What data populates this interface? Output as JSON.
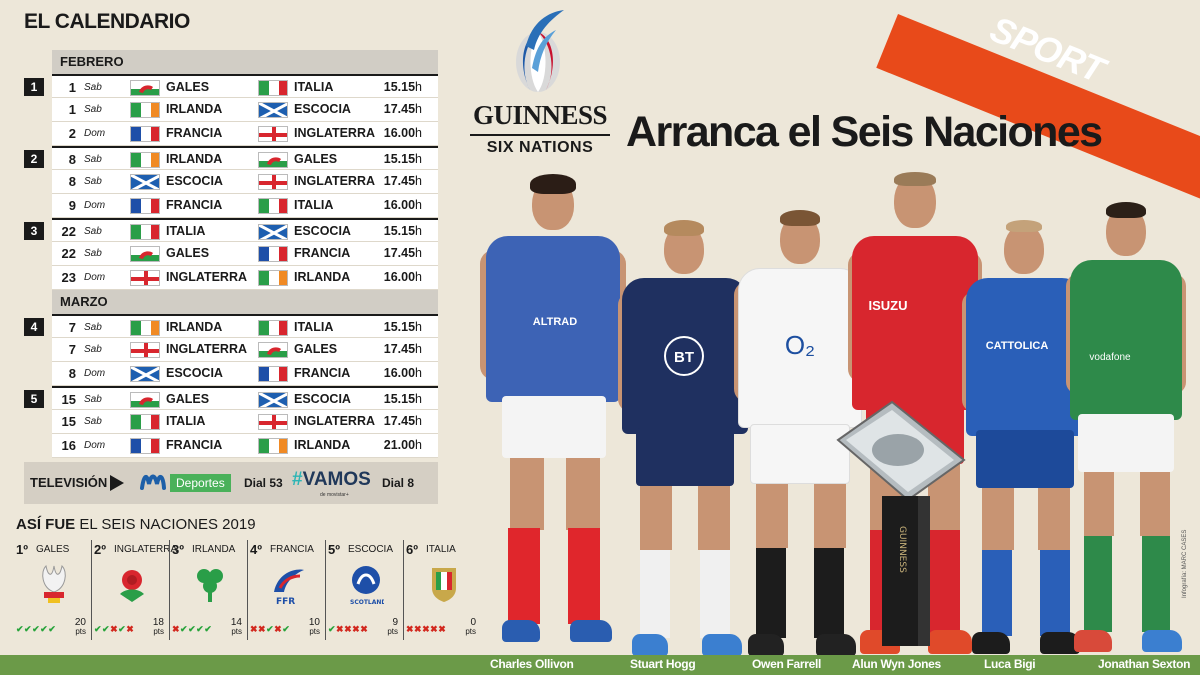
{
  "calendar_title": "EL CALENDARIO",
  "months": {
    "february": "FEBRERO",
    "march": "MARZO"
  },
  "matches": [
    {
      "round": "1",
      "day": "1",
      "dow": "Sab",
      "home": "GALES",
      "away": "ITALIA",
      "time": "15.15",
      "unit": "h"
    },
    {
      "round": "",
      "day": "1",
      "dow": "Sab",
      "home": "IRLANDA",
      "away": "ESCOCIA",
      "time": "17.45",
      "unit": "h"
    },
    {
      "round": "",
      "day": "2",
      "dow": "Dom",
      "home": "FRANCIA",
      "away": "INGLATERRA",
      "time": "16.00",
      "unit": "h"
    },
    {
      "round": "2",
      "day": "8",
      "dow": "Sab",
      "home": "IRLANDA",
      "away": "GALES",
      "time": "15.15",
      "unit": "h"
    },
    {
      "round": "",
      "day": "8",
      "dow": "Sab",
      "home": "ESCOCIA",
      "away": "INGLATERRA",
      "time": "17.45",
      "unit": "h"
    },
    {
      "round": "",
      "day": "9",
      "dow": "Dom",
      "home": "FRANCIA",
      "away": "ITALIA",
      "time": "16.00",
      "unit": "h"
    },
    {
      "round": "3",
      "day": "22",
      "dow": "Sab",
      "home": "ITALIA",
      "away": "ESCOCIA",
      "time": "15.15",
      "unit": "h"
    },
    {
      "round": "",
      "day": "22",
      "dow": "Sab",
      "home": "GALES",
      "away": "FRANCIA",
      "time": "17.45",
      "unit": "h"
    },
    {
      "round": "",
      "day": "23",
      "dow": "Dom",
      "home": "INGLATERRA",
      "away": "IRLANDA",
      "time": "16.00",
      "unit": "h"
    },
    {
      "round": "4",
      "day": "7",
      "dow": "Sab",
      "home": "IRLANDA",
      "away": "ITALIA",
      "time": "15.15",
      "unit": "h"
    },
    {
      "round": "",
      "day": "7",
      "dow": "Sab",
      "home": "INGLATERRA",
      "away": "GALES",
      "time": "17.45",
      "unit": "h"
    },
    {
      "round": "",
      "day": "8",
      "dow": "Dom",
      "home": "ESCOCIA",
      "away": "FRANCIA",
      "time": "16.00",
      "unit": "h"
    },
    {
      "round": "5",
      "day": "15",
      "dow": "Sab",
      "home": "GALES",
      "away": "ESCOCIA",
      "time": "15.15",
      "unit": "h"
    },
    {
      "round": "",
      "day": "15",
      "dow": "Sab",
      "home": "ITALIA",
      "away": "INGLATERRA",
      "time": "17.45",
      "unit": "h"
    },
    {
      "round": "",
      "day": "16",
      "dow": "Dom",
      "home": "FRANCIA",
      "away": "IRLANDA",
      "time": "21.00",
      "unit": "h"
    }
  ],
  "tv": {
    "label": "TELEVISIÓN",
    "channel1": "Deportes",
    "dial1": "Dial 53",
    "channel2_hash": "#",
    "channel2": "VAMOS",
    "channel2_sub": "de movistar+",
    "dial2": "Dial 8"
  },
  "results_title_bold": "ASÍ FUE",
  "results_title_rest": "EL SEIS NACIONES 2019",
  "results": [
    {
      "pos": "1º",
      "team": "GALES",
      "marks": [
        "ok",
        "ok",
        "ok",
        "ok",
        "ok"
      ],
      "points": "20",
      "unit": "pts"
    },
    {
      "pos": "2º",
      "team": "INGLATERRA",
      "marks": [
        "ok",
        "ok",
        "ko",
        "ok",
        "ko"
      ],
      "points": "18",
      "unit": "pts"
    },
    {
      "pos": "3º",
      "team": "IRLANDA",
      "marks": [
        "ko",
        "ok",
        "ok",
        "ok",
        "ok"
      ],
      "points": "14",
      "unit": "pts"
    },
    {
      "pos": "4º",
      "team": "FRANCIA",
      "marks": [
        "ko",
        "ko",
        "ok",
        "ko",
        "ok"
      ],
      "points": "10",
      "unit": "pts"
    },
    {
      "pos": "5º",
      "team": "ESCOCIA",
      "marks": [
        "ok",
        "ko",
        "ko",
        "ko",
        "ko"
      ],
      "points": "9",
      "unit": "pts"
    },
    {
      "pos": "6º",
      "team": "ITALIA",
      "marks": [
        "ko",
        "ko",
        "ko",
        "ko",
        "ko"
      ],
      "points": "0",
      "unit": "pts"
    }
  ],
  "emblem_labels": {
    "france": "FFR",
    "scotland": "SCOTLAND"
  },
  "sport_label": "SPORT",
  "logo_brand": "GUINNESS",
  "logo_event": "SIX NATIONS",
  "headline": "Arranca el Seis Naciones",
  "players": [
    {
      "name": "Charles Ollivon",
      "sponsor": "ALTRAD"
    },
    {
      "name": "Stuart Hogg",
      "sponsor": "BT"
    },
    {
      "name": "Owen Farrell",
      "sponsor": "O₂"
    },
    {
      "name": "Alun Wyn Jones",
      "sponsor": "ISUZU"
    },
    {
      "name": "Luca Bigi",
      "sponsor": "CATTOLICA"
    },
    {
      "name": "Jonathan Sexton",
      "sponsor": "vodafone"
    }
  ],
  "trophy_text": "GUINNESS",
  "credit": "Infografía: MARC CASES",
  "colors": {
    "background": "#ede7d9",
    "sport_orange": "#e84a1a",
    "grass": "#6b9a48",
    "win": "#27a33a",
    "loss": "#d2281e"
  }
}
